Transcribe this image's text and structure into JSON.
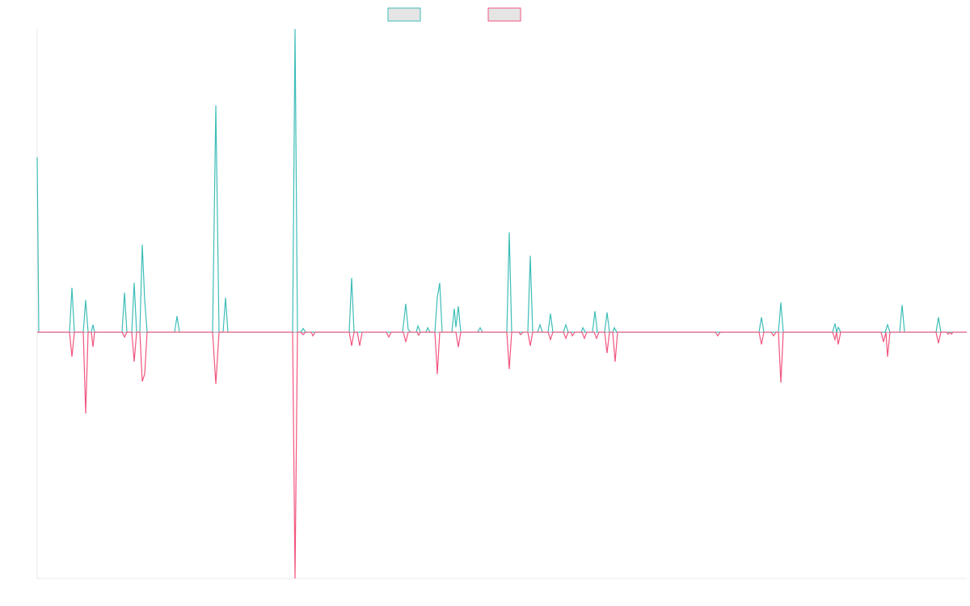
{
  "chart_data": {
    "type": "line",
    "title": "",
    "xlabel": "",
    "ylabel": "",
    "grid": false,
    "legend_position": "top-center",
    "x_range": [
      0,
      1150
    ],
    "ylim": [
      -1,
      1.23
    ],
    "series": [
      {
        "legend_swatch_fill": "#e5e5e5",
        "color": "#3dbdb8",
        "points": [
          [
            0,
            0.71
          ],
          [
            2,
            0
          ],
          [
            40,
            0
          ],
          [
            43,
            0.18
          ],
          [
            46,
            0
          ],
          [
            57,
            0
          ],
          [
            60,
            0.13
          ],
          [
            63,
            0
          ],
          [
            67,
            0
          ],
          [
            69,
            0.03
          ],
          [
            71,
            0
          ],
          [
            105,
            0
          ],
          [
            108,
            0.16
          ],
          [
            111,
            0
          ],
          [
            117,
            0
          ],
          [
            120,
            0.2
          ],
          [
            123,
            0
          ],
          [
            127,
            0
          ],
          [
            130,
            0.355
          ],
          [
            133,
            0.13
          ],
          [
            136,
            0
          ],
          [
            170,
            0
          ],
          [
            173,
            0.065
          ],
          [
            176,
            0
          ],
          [
            217,
            0
          ],
          [
            221,
            0.92
          ],
          [
            225,
            0
          ],
          [
            230,
            0
          ],
          [
            233,
            0.14
          ],
          [
            236,
            0
          ],
          [
            316,
            0
          ],
          [
            319,
            1.23
          ],
          [
            322,
            0
          ],
          [
            326,
            0
          ],
          [
            329,
            0.015
          ],
          [
            332,
            0
          ],
          [
            386,
            0
          ],
          [
            389,
            0.22
          ],
          [
            392,
            0
          ],
          [
            452,
            0
          ],
          [
            456,
            0.115
          ],
          [
            459,
            0.01
          ],
          [
            462,
            0
          ],
          [
            469,
            0
          ],
          [
            471,
            0.025
          ],
          [
            474,
            0
          ],
          [
            481,
            0
          ],
          [
            483,
            0.018
          ],
          [
            486,
            0
          ],
          [
            492,
            0
          ],
          [
            495,
            0.14
          ],
          [
            498,
            0.2
          ],
          [
            501,
            0
          ],
          [
            513,
            0
          ],
          [
            516,
            0.095
          ],
          [
            518,
            0.02
          ],
          [
            521,
            0.105
          ],
          [
            524,
            0
          ],
          [
            545,
            0
          ],
          [
            548,
            0.018
          ],
          [
            551,
            0
          ],
          [
            581,
            0
          ],
          [
            584,
            0.405
          ],
          [
            587,
            0
          ],
          [
            607,
            0
          ],
          [
            610,
            0.31
          ],
          [
            613,
            0
          ],
          [
            619,
            0
          ],
          [
            622,
            0.03
          ],
          [
            625,
            0
          ],
          [
            632,
            0
          ],
          [
            635,
            0.075
          ],
          [
            638,
            0
          ],
          [
            651,
            0
          ],
          [
            654,
            0.03
          ],
          [
            657,
            0
          ],
          [
            673,
            0
          ],
          [
            675,
            0.018
          ],
          [
            678,
            0
          ],
          [
            687,
            0
          ],
          [
            690,
            0.085
          ],
          [
            693,
            0
          ],
          [
            702,
            0
          ],
          [
            705,
            0.08
          ],
          [
            708,
            0
          ],
          [
            712,
            0
          ],
          [
            714,
            0.018
          ],
          [
            717,
            0
          ],
          [
            893,
            0
          ],
          [
            896,
            0.06
          ],
          [
            899,
            0
          ],
          [
            917,
            0
          ],
          [
            920,
            0.12
          ],
          [
            923,
            0
          ],
          [
            984,
            0
          ],
          [
            987,
            0.035
          ],
          [
            989,
            0
          ],
          [
            991,
            0.02
          ],
          [
            994,
            0
          ],
          [
            1049,
            0
          ],
          [
            1052,
            0.03
          ],
          [
            1055,
            0
          ],
          [
            1067,
            0
          ],
          [
            1070,
            0.11
          ],
          [
            1073,
            0
          ],
          [
            1112,
            0
          ],
          [
            1115,
            0.06
          ],
          [
            1118,
            0
          ],
          [
            1150,
            0
          ]
        ]
      },
      {
        "legend_swatch_fill": "#e5e5e5",
        "color": "#f2557e",
        "points": [
          [
            0,
            0
          ],
          [
            40,
            0
          ],
          [
            43,
            -0.1
          ],
          [
            46,
            0
          ],
          [
            57,
            0
          ],
          [
            60,
            -0.33
          ],
          [
            63,
            0
          ],
          [
            67,
            0
          ],
          [
            69,
            -0.06
          ],
          [
            71,
            0
          ],
          [
            105,
            0
          ],
          [
            108,
            -0.02
          ],
          [
            111,
            0
          ],
          [
            117,
            0
          ],
          [
            120,
            -0.12
          ],
          [
            123,
            0
          ],
          [
            127,
            0
          ],
          [
            130,
            -0.2
          ],
          [
            133,
            -0.17
          ],
          [
            136,
            0
          ],
          [
            217,
            0
          ],
          [
            221,
            -0.21
          ],
          [
            225,
            0
          ],
          [
            316,
            0
          ],
          [
            319,
            -1.0
          ],
          [
            322,
            0
          ],
          [
            326,
            0
          ],
          [
            329,
            -0.01
          ],
          [
            332,
            0
          ],
          [
            339,
            0
          ],
          [
            341,
            -0.015
          ],
          [
            344,
            0
          ],
          [
            386,
            0
          ],
          [
            389,
            -0.055
          ],
          [
            392,
            0
          ],
          [
            396,
            0
          ],
          [
            399,
            -0.055
          ],
          [
            402,
            0
          ],
          [
            432,
            0
          ],
          [
            435,
            -0.02
          ],
          [
            438,
            0
          ],
          [
            453,
            0
          ],
          [
            456,
            -0.04
          ],
          [
            459,
            0
          ],
          [
            470,
            0
          ],
          [
            472,
            -0.012
          ],
          [
            474,
            0
          ],
          [
            492,
            0
          ],
          [
            495,
            -0.17
          ],
          [
            498,
            0
          ],
          [
            518,
            0
          ],
          [
            521,
            -0.06
          ],
          [
            524,
            0
          ],
          [
            581,
            0
          ],
          [
            584,
            -0.15
          ],
          [
            587,
            0
          ],
          [
            596,
            0
          ],
          [
            598,
            -0.01
          ],
          [
            601,
            0
          ],
          [
            607,
            0
          ],
          [
            610,
            -0.055
          ],
          [
            613,
            0
          ],
          [
            632,
            0
          ],
          [
            635,
            -0.03
          ],
          [
            638,
            0
          ],
          [
            651,
            0
          ],
          [
            654,
            -0.025
          ],
          [
            657,
            0
          ],
          [
            660,
            0
          ],
          [
            662,
            -0.015
          ],
          [
            665,
            0
          ],
          [
            674,
            0
          ],
          [
            677,
            -0.025
          ],
          [
            680,
            0
          ],
          [
            689,
            0
          ],
          [
            692,
            -0.025
          ],
          [
            695,
            0
          ],
          [
            702,
            0
          ],
          [
            705,
            -0.085
          ],
          [
            708,
            0
          ],
          [
            712,
            0
          ],
          [
            715,
            -0.12
          ],
          [
            718,
            0
          ],
          [
            839,
            0
          ],
          [
            842,
            -0.015
          ],
          [
            845,
            0
          ],
          [
            893,
            0
          ],
          [
            896,
            -0.05
          ],
          [
            899,
            0
          ],
          [
            908,
            0
          ],
          [
            911,
            -0.015
          ],
          [
            914,
            0
          ],
          [
            917,
            0
          ],
          [
            920,
            -0.205
          ],
          [
            923,
            0
          ],
          [
            984,
            0
          ],
          [
            987,
            -0.03
          ],
          [
            989,
            0
          ],
          [
            991,
            -0.05
          ],
          [
            994,
            0
          ],
          [
            1044,
            0
          ],
          [
            1047,
            -0.04
          ],
          [
            1050,
            0
          ],
          [
            1052,
            -0.1
          ],
          [
            1055,
            0
          ],
          [
            1112,
            0
          ],
          [
            1115,
            -0.045
          ],
          [
            1118,
            0
          ],
          [
            1125,
            0
          ],
          [
            1127,
            -0.008
          ],
          [
            1129,
            0
          ],
          [
            1131,
            -0.008
          ],
          [
            1133,
            0
          ],
          [
            1150,
            0
          ]
        ]
      }
    ]
  }
}
